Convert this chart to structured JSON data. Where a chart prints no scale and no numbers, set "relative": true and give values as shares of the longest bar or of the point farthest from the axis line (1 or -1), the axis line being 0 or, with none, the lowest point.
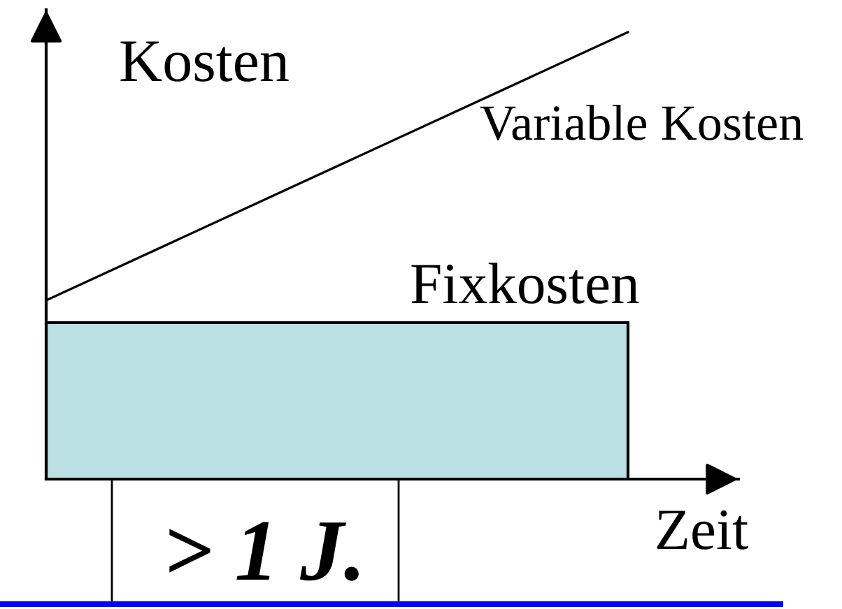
{
  "chart_data": {
    "type": "line",
    "ylabel": "Kosten",
    "xlabel": "Zeit",
    "annotations": [
      "> 1 J."
    ],
    "categories": [
      null,
      null
    ],
    "relative": true,
    "series": [
      {
        "name": "Fixkosten",
        "type": "area",
        "color": "#bbe0e3",
        "values": [
          0.35,
          0.35
        ]
      },
      {
        "name": "Variable Kosten",
        "color": "#000000",
        "values": [
          0.4,
          1
        ]
      }
    ]
  }
}
